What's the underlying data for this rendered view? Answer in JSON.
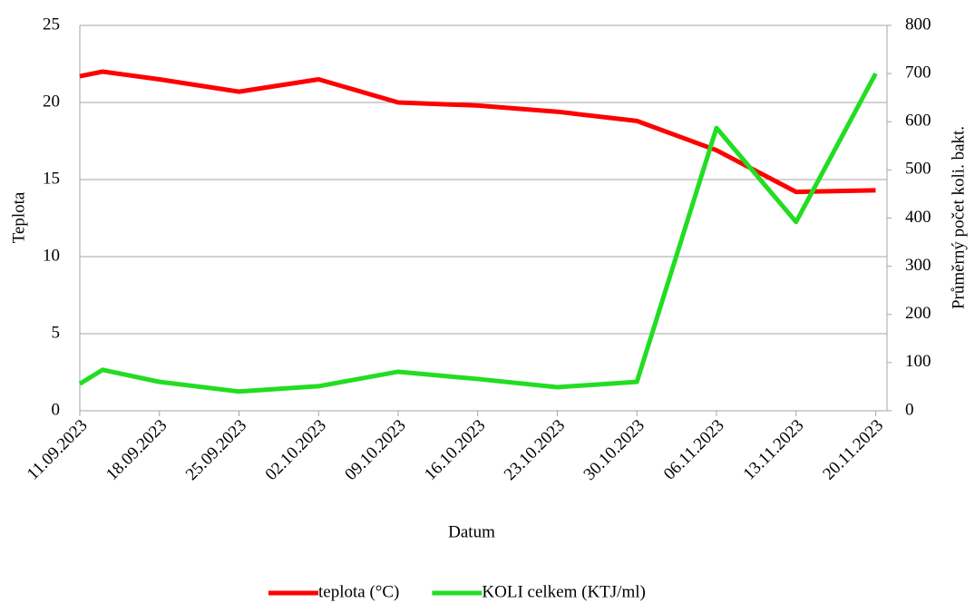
{
  "chart_data": {
    "type": "line",
    "x_label": "Datum",
    "y_label": "Teplota",
    "y2_label": "Průměrný počet koli. bakt.",
    "x": [
      "2023-09-11",
      "2023-09-13",
      "2023-09-18",
      "2023-09-25",
      "2023-10-02",
      "2023-10-09",
      "2023-10-16",
      "2023-10-23",
      "2023-10-30",
      "2023-11-06",
      "2023-11-13",
      "2023-11-20"
    ],
    "series": [
      {
        "name": "teplota (°C)",
        "color": "#ff0000",
        "values": [
          21.7,
          22.0,
          21.5,
          20.7,
          21.5,
          20.0,
          19.8,
          19.4,
          18.8,
          16.9,
          14.2,
          14.3
        ]
      },
      {
        "name": "KOLI celkem (KTJ/ml)",
        "color": "#22dd22",
        "axis": "y2",
        "values": [
          56,
          85,
          60,
          40,
          51,
          81,
          66,
          49,
          60,
          587,
          392,
          700
        ]
      }
    ],
    "xlim": [
      "2023-09-11",
      "2023-11-21"
    ],
    "xticks": [
      {
        "value": "2023-09-11",
        "label": "11.09.2023"
      },
      {
        "value": "2023-09-18",
        "label": "18.09.2023"
      },
      {
        "value": "2023-09-25",
        "label": "25.09.2023"
      },
      {
        "value": "2023-10-02",
        "label": "02.10.2023"
      },
      {
        "value": "2023-10-09",
        "label": "09.10.2023"
      },
      {
        "value": "2023-10-16",
        "label": "16.10.2023"
      },
      {
        "value": "2023-10-23",
        "label": "23.10.2023"
      },
      {
        "value": "2023-10-30",
        "label": "30.10.2023"
      },
      {
        "value": "2023-11-06",
        "label": "06.11.2023"
      },
      {
        "value": "2023-11-13",
        "label": "13.11.2023"
      },
      {
        "value": "2023-11-20",
        "label": "20.11.2023"
      }
    ],
    "ylim": [
      0,
      25
    ],
    "yticks": [
      0,
      5,
      10,
      15,
      20,
      25
    ],
    "y2lim": [
      0,
      800
    ],
    "y2ticks": [
      0,
      100,
      200,
      300,
      400,
      500,
      600,
      700,
      800
    ],
    "grid": true,
    "legend": "bottom"
  }
}
